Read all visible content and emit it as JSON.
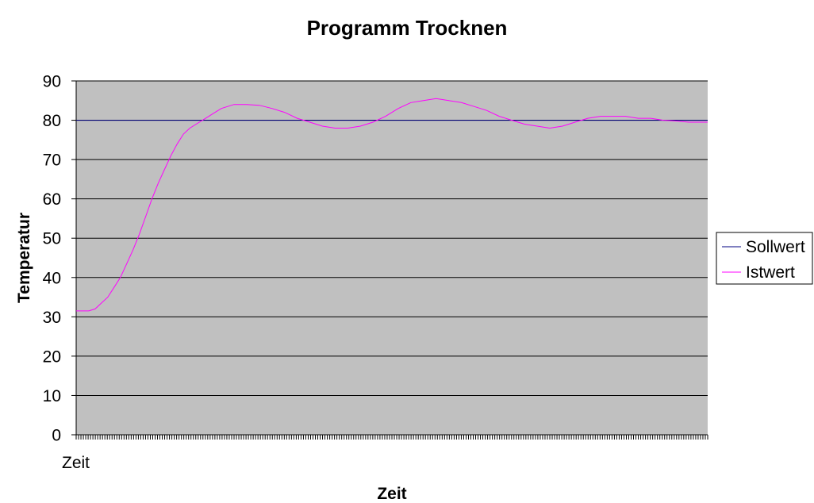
{
  "chart_data": {
    "type": "line",
    "title": "Programm Trocknen",
    "xlabel": "Zeit",
    "ylabel": "Temperatur",
    "x_tick_label": "Zeit",
    "ylim": [
      0,
      90
    ],
    "y_ticks": [
      "0",
      "10",
      "20",
      "30",
      "40",
      "50",
      "60",
      "70",
      "80",
      "90"
    ],
    "grid": "horizontal",
    "legend_position": "right",
    "plot_background": "#c0c0c0",
    "series": [
      {
        "name": "Sollwert",
        "color": "#000080",
        "points": [
          [
            0,
            80
          ],
          [
            100,
            80
          ]
        ]
      },
      {
        "name": "Istwert",
        "color": "#ff00ff",
        "points": [
          [
            0,
            31.5
          ],
          [
            2,
            31.5
          ],
          [
            3,
            32
          ],
          [
            4,
            33.5
          ],
          [
            5,
            35
          ],
          [
            6,
            37.5
          ],
          [
            7,
            40
          ],
          [
            8,
            43.5
          ],
          [
            9,
            47
          ],
          [
            10,
            51
          ],
          [
            11,
            55.5
          ],
          [
            12,
            60
          ],
          [
            13,
            64
          ],
          [
            14,
            67.5
          ],
          [
            15,
            71
          ],
          [
            16,
            74
          ],
          [
            17,
            76.5
          ],
          [
            18,
            78
          ],
          [
            19,
            79
          ],
          [
            20,
            80
          ],
          [
            21,
            81
          ],
          [
            22,
            82
          ],
          [
            23,
            83
          ],
          [
            24,
            83.5
          ],
          [
            25,
            84
          ],
          [
            27,
            84
          ],
          [
            29,
            83.8
          ],
          [
            31,
            83
          ],
          [
            33,
            82
          ],
          [
            35,
            80.5
          ],
          [
            37,
            79.5
          ],
          [
            39,
            78.5
          ],
          [
            41,
            78
          ],
          [
            43,
            78
          ],
          [
            45,
            78.5
          ],
          [
            47,
            79.5
          ],
          [
            49,
            81
          ],
          [
            51,
            83
          ],
          [
            53,
            84.5
          ],
          [
            55,
            85
          ],
          [
            57,
            85.5
          ],
          [
            59,
            85
          ],
          [
            61,
            84.5
          ],
          [
            63,
            83.5
          ],
          [
            65,
            82.5
          ],
          [
            67,
            81
          ],
          [
            69,
            80
          ],
          [
            71,
            79
          ],
          [
            73,
            78.5
          ],
          [
            75,
            78
          ],
          [
            77,
            78.5
          ],
          [
            79,
            79.5
          ],
          [
            81,
            80.5
          ],
          [
            83,
            81
          ],
          [
            85,
            81
          ],
          [
            87,
            81
          ],
          [
            89,
            80.5
          ],
          [
            91,
            80.5
          ],
          [
            93,
            80
          ],
          [
            95,
            79.8
          ],
          [
            97,
            79.5
          ],
          [
            100,
            79.5
          ]
        ]
      }
    ]
  }
}
